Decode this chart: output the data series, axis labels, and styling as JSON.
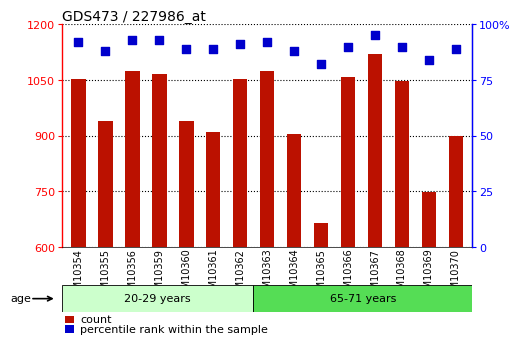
{
  "title": "GDS473 / 227986_at",
  "categories": [
    "GSM10354",
    "GSM10355",
    "GSM10356",
    "GSM10359",
    "GSM10360",
    "GSM10361",
    "GSM10362",
    "GSM10363",
    "GSM10364",
    "GSM10365",
    "GSM10366",
    "GSM10367",
    "GSM10368",
    "GSM10369",
    "GSM10370"
  ],
  "counts": [
    1052,
    940,
    1075,
    1065,
    940,
    910,
    1052,
    1075,
    905,
    665,
    1057,
    1120,
    1047,
    748,
    900
  ],
  "percentiles": [
    92,
    88,
    93,
    93,
    89,
    89,
    91,
    92,
    88,
    82,
    90,
    95,
    90,
    84,
    89
  ],
  "ylim_left": [
    600,
    1200
  ],
  "ylim_right": [
    0,
    100
  ],
  "yticks_left": [
    600,
    750,
    900,
    1050,
    1200
  ],
  "yticks_right": [
    0,
    25,
    50,
    75,
    100
  ],
  "group1_label": "20-29 years",
  "group1_n": 7,
  "group2_label": "65-71 years",
  "group2_n": 8,
  "group1_color": "#ccffcc",
  "group2_color": "#55dd55",
  "bar_color": "#bb1100",
  "dot_color": "#0000cc",
  "bar_bottom": 600,
  "age_label": "age",
  "legend_count": "count",
  "legend_pct": "percentile rank within the sample",
  "bar_width": 0.55,
  "dot_size": 28,
  "xtick_bg_color": "#c8c8c8",
  "grid_linestyle": ":",
  "grid_color": "#000000",
  "grid_linewidth": 0.8
}
